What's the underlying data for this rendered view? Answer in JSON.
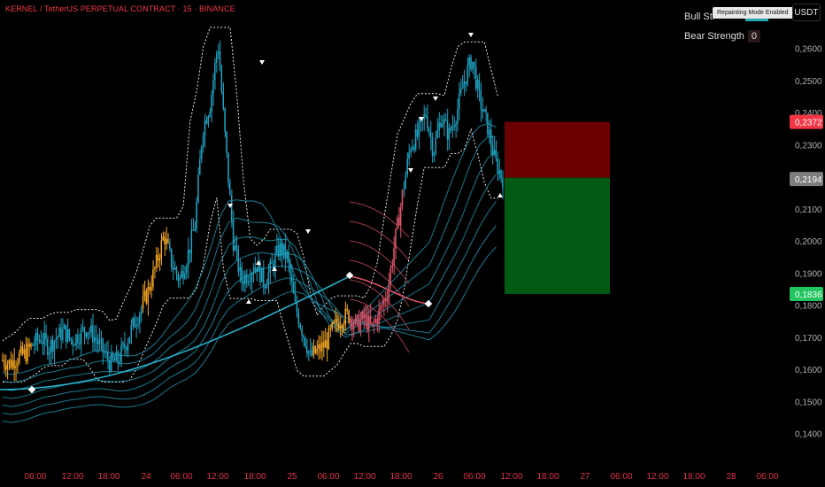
{
  "header": {
    "symbol": "KERNEL / TetherUS PERPETUAL CONTRACT · 15 · BINANCE",
    "currency": "USDT"
  },
  "indicator_panel": {
    "bull_label": "Bull Str",
    "tooltip": "Repainting Mode Enabled",
    "bear_label": "Bear Strength",
    "bear_value": "0"
  },
  "colors": {
    "up": "#1fa3c2",
    "down_orange": "#f5a623",
    "down_pink": "#e0566a",
    "red_box": "#6b0000",
    "green_box": "#005a12",
    "price_red": "#f23645",
    "price_gray": "#7e7e7e",
    "price_green": "#22c55e",
    "axis_text": "#b0b0b0",
    "time_text": "#e0304a"
  },
  "chart_data": {
    "type": "candlestick",
    "y_axis": {
      "ticks": [
        "0,2600",
        "0,2500",
        "0,2400",
        "0,2300",
        "0,2200",
        "0,2100",
        "0,2000",
        "0,1900",
        "0,1800",
        "0,1700",
        "0,1600",
        "0,1500",
        "0,1400"
      ],
      "ylim": [
        0.133,
        0.2685
      ]
    },
    "x_axis": {
      "ticks": [
        "06:00",
        "12:00",
        "18:00",
        "24",
        "06:00",
        "12:00",
        "18:00",
        "25",
        "06:00",
        "12:00",
        "18:00",
        "26",
        "06:00",
        "12:00",
        "18:00",
        "27",
        "06:00",
        "12:00",
        "18:00",
        "28",
        "06:00"
      ]
    },
    "price_labels": [
      {
        "text": "0,2372",
        "value": 0.2372,
        "color": "#f23645"
      },
      {
        "text": "0,2194",
        "value": 0.2194,
        "color": "#7e7e7e"
      },
      {
        "text": "0,1836",
        "value": 0.1836,
        "color": "#22c55e"
      }
    ],
    "position": {
      "entry": 0.2198,
      "stop": 0.2372,
      "target": 0.1836
    },
    "series": [
      {
        "name": "Close",
        "values": [
          0.163,
          0.162,
          0.164,
          0.165,
          0.168,
          0.17,
          0.167,
          0.17,
          0.172,
          0.169,
          0.171,
          0.173,
          0.17,
          0.166,
          0.162,
          0.163,
          0.168,
          0.174,
          0.179,
          0.185,
          0.193,
          0.202,
          0.193,
          0.188,
          0.195,
          0.205,
          0.235,
          0.243,
          0.262,
          0.23,
          0.2,
          0.188,
          0.19,
          0.193,
          0.187,
          0.192,
          0.198,
          0.195,
          0.18,
          0.172,
          0.164,
          0.166,
          0.168,
          0.173,
          0.176,
          0.177,
          0.174,
          0.176,
          0.173,
          0.178,
          0.184,
          0.2,
          0.215,
          0.23,
          0.233,
          0.24,
          0.228,
          0.239,
          0.233,
          0.24,
          0.25,
          0.257,
          0.244,
          0.236,
          0.225,
          0.2194
        ]
      }
    ]
  }
}
